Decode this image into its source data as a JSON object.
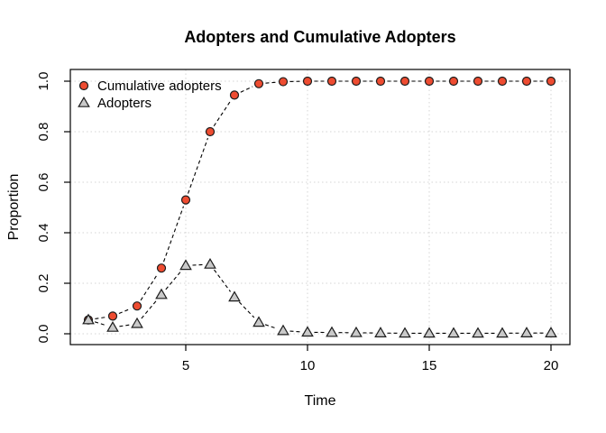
{
  "window": {
    "background": "#ffffff"
  },
  "chart_data": {
    "type": "line",
    "title": "Adopters and Cumulative Adopters",
    "xlabel": "Time",
    "ylabel": "Proportion",
    "x": [
      1,
      2,
      3,
      4,
      5,
      6,
      7,
      8,
      9,
      10,
      11,
      12,
      13,
      14,
      15,
      16,
      17,
      18,
      19,
      20
    ],
    "xlim": [
      1,
      20
    ],
    "ylim": [
      0.0,
      1.0
    ],
    "xticks": [
      5,
      10,
      15,
      20
    ],
    "ytick_labels": [
      "0.0",
      "0.2",
      "0.4",
      "0.6",
      "0.8",
      "1.0"
    ],
    "grid": "dotted",
    "line_style": "dashed",
    "legend_position": "top-left-inside",
    "legend_frame": false,
    "series": [
      {
        "name": "Cumulative adopters",
        "marker": "circle",
        "marker_fill": "#ee4c31",
        "marker_stroke": "#1c1c1c",
        "line_color": "#000000",
        "values": [
          0.055,
          0.07,
          0.11,
          0.26,
          0.53,
          0.8,
          0.945,
          0.99,
          0.998,
          1.0,
          1.0,
          1.0,
          1.0,
          1.0,
          1.0,
          1.0,
          1.0,
          1.0,
          1.0,
          1.0
        ]
      },
      {
        "name": "Adopters",
        "marker": "triangle",
        "marker_fill": "#c9c9c9",
        "marker_stroke": "#1c1c1c",
        "line_color": "#000000",
        "values": [
          0.055,
          0.025,
          0.04,
          0.155,
          0.27,
          0.275,
          0.145,
          0.045,
          0.012,
          0.006,
          0.005,
          0.004,
          0.003,
          0.002,
          0.002,
          0.002,
          0.002,
          0.002,
          0.003,
          0.003
        ]
      }
    ],
    "colors": {
      "grid": "#d4d4d4",
      "axis": "#000000",
      "text": "#000000"
    }
  }
}
